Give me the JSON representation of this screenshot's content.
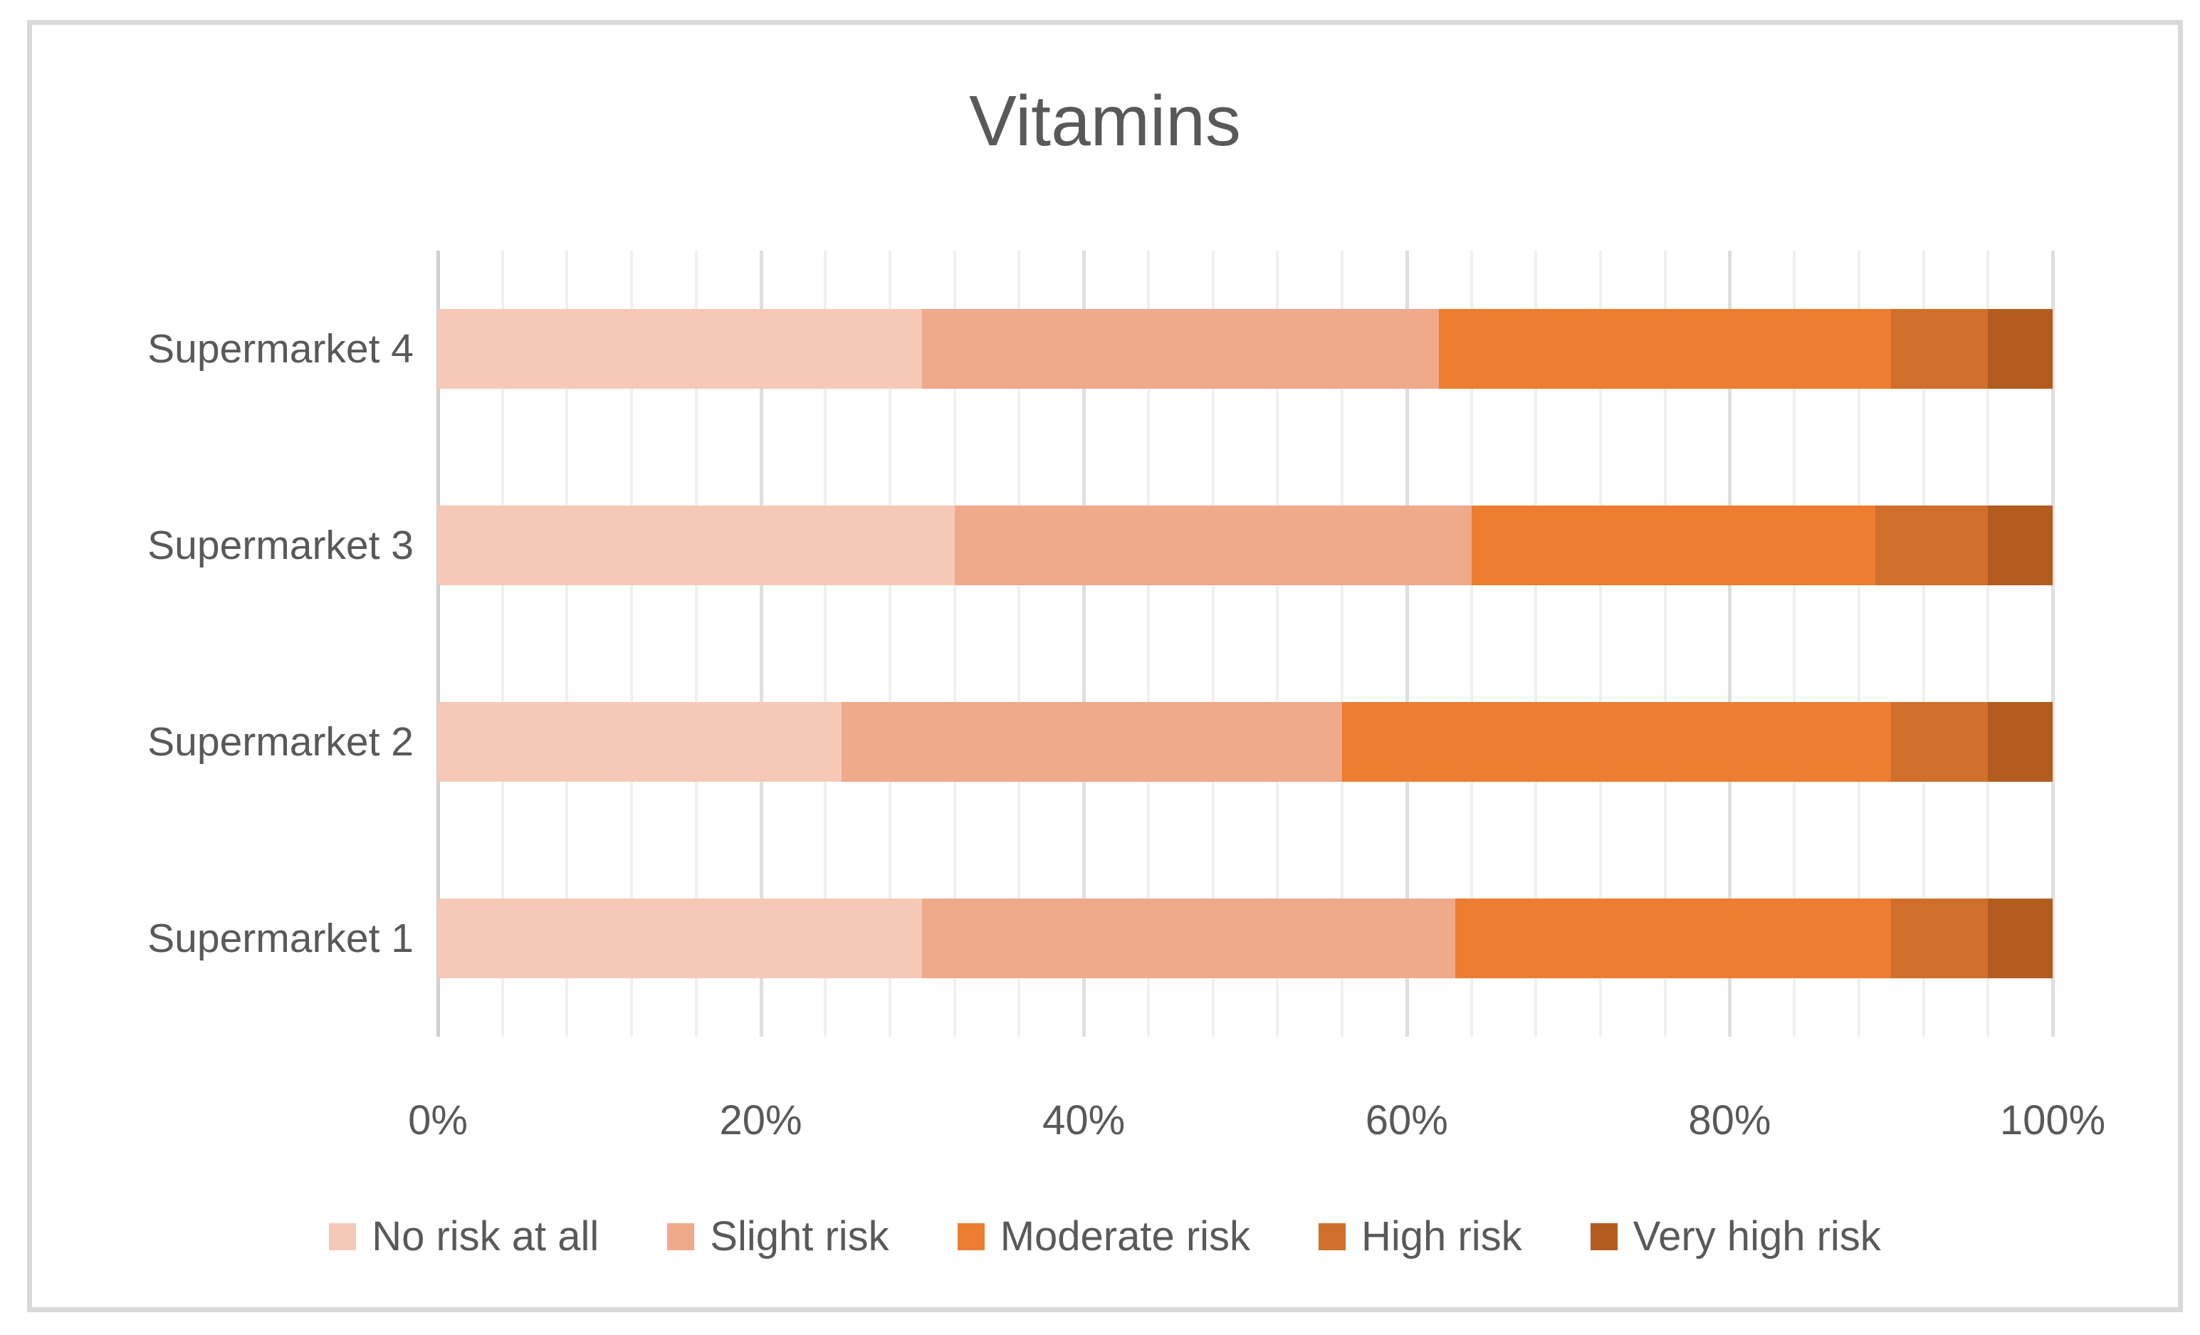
{
  "page": {
    "background": "#FFFFFF",
    "frame_border_color": "#D9D9D9",
    "text_color": "#595959"
  },
  "chart_data": {
    "type": "bar",
    "variant": "horizontal-stacked-100percent",
    "title": "Vitamins",
    "categories_top_to_bottom": [
      "Supermarket 4",
      "Supermarket 3",
      "Supermarket 2",
      "Supermarket 1"
    ],
    "series": [
      {
        "name": "No risk at all",
        "color": "#F6C9B6",
        "values_pct": [
          30,
          32,
          25,
          30
        ]
      },
      {
        "name": "Slight risk",
        "color": "#F0A98B",
        "values_pct": [
          32,
          32,
          31,
          33
        ]
      },
      {
        "name": "Moderate risk",
        "color": "#EC7D31",
        "values_pct": [
          28,
          25,
          34,
          27
        ]
      },
      {
        "name": "High risk",
        "color": "#D06F2B",
        "values_pct": [
          6,
          7,
          6,
          6
        ]
      },
      {
        "name": "Very high risk",
        "color": "#B25C20",
        "values_pct": [
          4,
          4,
          4,
          4
        ]
      }
    ],
    "x_axis": {
      "min": 0,
      "max": 100,
      "major_unit": 20,
      "minor_unit": 4,
      "tick_values": [
        0,
        20,
        40,
        60,
        80,
        100
      ],
      "tick_labels": [
        "0%",
        "20%",
        "40%",
        "60%",
        "80%",
        "100%"
      ]
    },
    "gridlines": {
      "minor_color": "#F0F0F0",
      "major_color": "#DFDFDF",
      "axis_line_color": "#CFCFCF",
      "horizontal": false
    },
    "legend_position": "bottom",
    "grid_on": true
  }
}
